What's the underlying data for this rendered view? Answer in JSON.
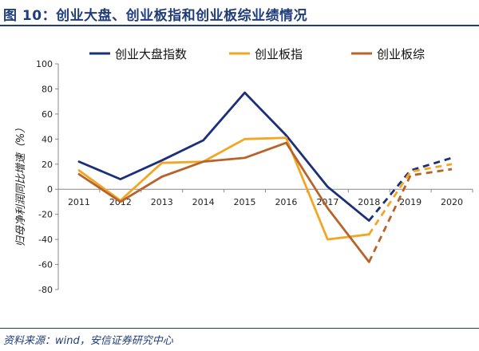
{
  "title": "图 10：创业大盘、创业板指和创业板综业绩情况",
  "source": "资料来源：wind，安信证券研究中心",
  "chart_data": {
    "type": "line",
    "title": "图 10：创业大盘、创业板指和创业板综业绩情况",
    "ylabel": "归母净利润同比增速（%）",
    "xlabel": "",
    "categories": [
      "2011",
      "2012",
      "2013",
      "2014",
      "2015",
      "2016",
      "2017",
      "2018",
      "2019",
      "2020"
    ],
    "y_ticks": [
      "100",
      "80",
      "60",
      "40",
      "20",
      "0",
      "-20",
      "-40",
      "-60",
      "-80"
    ],
    "ylim": [
      -80,
      100
    ],
    "grid": false,
    "legend_position": "top",
    "dashed_from_index": 7,
    "series": [
      {
        "name": "创业大盘指数",
        "color": "#1b2f7a",
        "values": [
          22,
          8,
          23,
          39,
          77,
          43,
          2,
          -25,
          15,
          25
        ]
      },
      {
        "name": "创业板指",
        "color": "#f2a623",
        "values": [
          15,
          -9,
          21,
          22,
          40,
          41,
          -40,
          -36,
          14,
          20
        ]
      },
      {
        "name": "创业板综",
        "color": "#b8632a",
        "values": [
          12,
          -10,
          10,
          22,
          25,
          37,
          -15,
          -58,
          11,
          16
        ]
      }
    ]
  }
}
